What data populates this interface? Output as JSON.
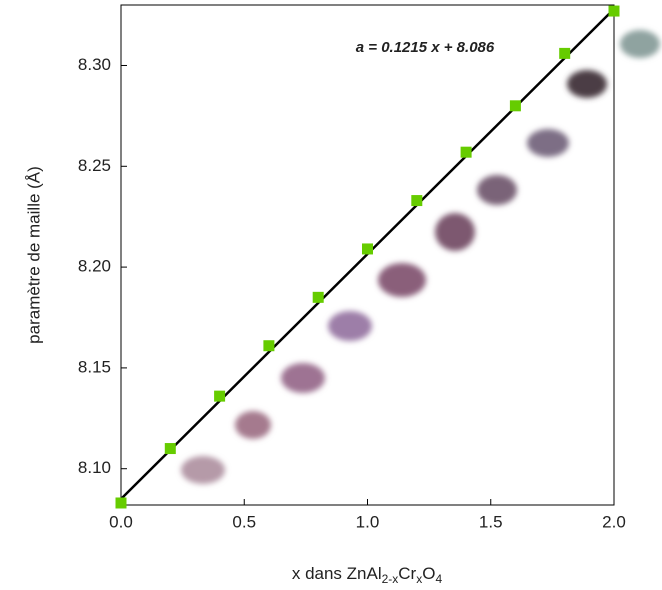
{
  "chart_data": {
    "type": "scatter",
    "xlabel": [
      "x dans ZnAl",
      "2-x",
      "Cr",
      "x",
      "O",
      "4"
    ],
    "ylabel": "paramètre de maille (Å)",
    "annotation": "a = 0.1215 x + 8.086",
    "x": [
      0,
      0.2,
      0.4,
      0.6,
      0.8,
      1.0,
      1.2,
      1.4,
      1.6,
      1.8,
      2.0
    ],
    "series": [
      {
        "color": "#66cc00",
        "values": [
          8.083,
          8.11,
          8.136,
          8.161,
          8.185,
          8.209,
          8.233,
          8.257,
          8.28,
          8.306,
          8.327
        ]
      },
      {
        "color": "#000000",
        "x": [
          0,
          2.0
        ],
        "values": [
          8.085,
          8.328
        ]
      }
    ],
    "xlim": [
      0,
      2.0
    ],
    "xticks": [
      {
        "value": 0,
        "label": "0.0"
      },
      0.5,
      {
        "value": 1,
        "label": "1.0"
      },
      1.5,
      {
        "value": 2,
        "label": "2.0"
      }
    ],
    "ylim": [
      8.082,
      8.33
    ],
    "yticks": [
      {
        "value": 8.1,
        "label": "8.10"
      },
      8.15,
      {
        "value": 8.2,
        "label": "8.20"
      },
      8.25,
      {
        "value": 8.3,
        "label": "8.30"
      }
    ]
  }
}
